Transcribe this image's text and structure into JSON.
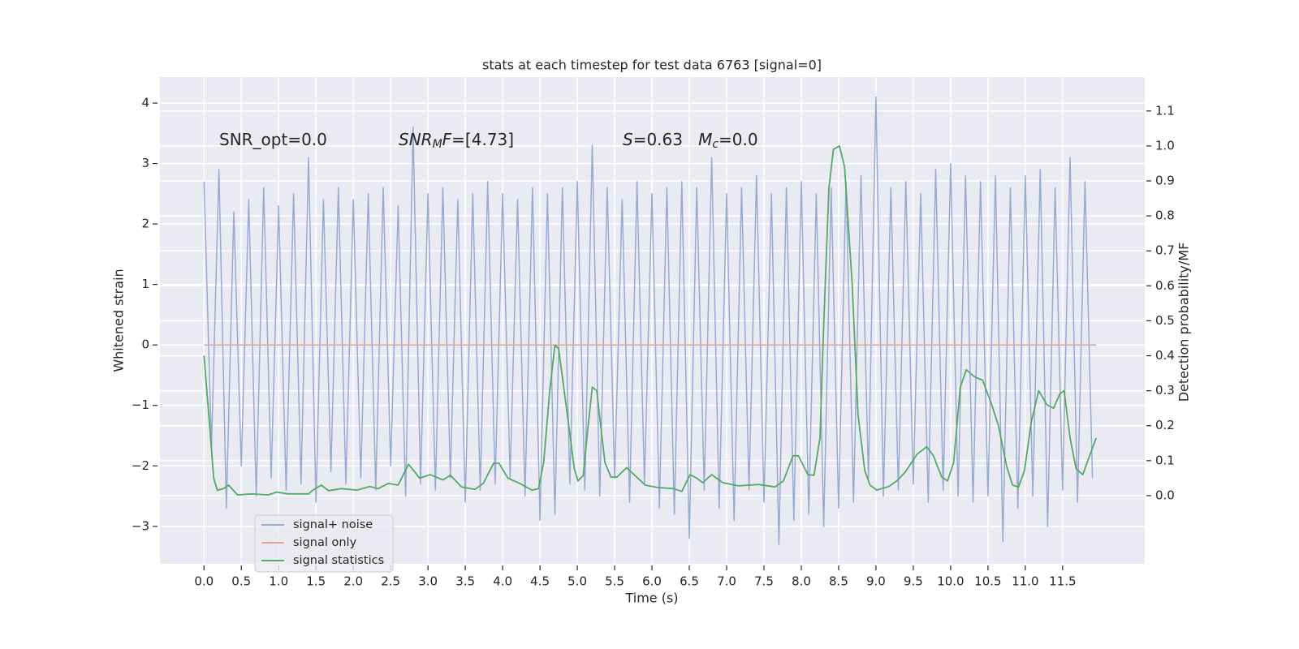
{
  "chart_data": {
    "type": "line",
    "title": "stats at each timestep for test data 6763 [signal=0]",
    "xlabel": "Time (s)",
    "ylabel": "Whitened strain",
    "y2label": "Detection probability/MF",
    "xlim": [
      -0.59,
      12.6
    ],
    "ylim": [
      -3.62,
      4.43
    ],
    "y2lim": [
      -0.195,
      1.197
    ],
    "xticks": [
      {
        "value": 0,
        "label": "0.0"
      },
      0.5,
      {
        "value": 1,
        "label": "1.0"
      },
      1.5,
      {
        "value": 2,
        "label": "2.0"
      },
      2.5,
      {
        "value": 3,
        "label": "3.0"
      },
      3.5,
      {
        "value": 4,
        "label": "4.0"
      },
      4.5,
      {
        "value": 5,
        "label": "5.0"
      },
      5.5,
      {
        "value": 6,
        "label": "6.0"
      },
      6.5,
      {
        "value": 7,
        "label": "7.0"
      },
      7.5,
      {
        "value": 8,
        "label": "8.0"
      },
      8.5,
      {
        "value": 9,
        "label": "9.0"
      },
      9.5,
      {
        "value": 10,
        "label": "10.0"
      },
      10.5,
      {
        "value": 11,
        "label": "11.0"
      },
      11.5
    ],
    "yticks": [
      {
        "value": -3,
        "label": "−3"
      },
      {
        "value": -2,
        "label": "−2"
      },
      {
        "value": -1,
        "label": "−1"
      },
      0,
      1,
      2,
      3,
      4
    ],
    "y2ticks": [
      {
        "value": 0,
        "label": "0.0"
      },
      0.1,
      0.2,
      0.3,
      0.4,
      0.5,
      0.6,
      0.7,
      0.8,
      0.9,
      {
        "value": 1,
        "label": "1.0"
      },
      1.1
    ],
    "grid": true,
    "legend": "lower left",
    "annotations": [
      [
        {
          "text": "SNR_opt=0.0",
          "style": "n"
        }
      ],
      [
        {
          "text": "SNR",
          "style": "i"
        },
        {
          "text": "M",
          "style": "sub"
        },
        {
          "text": "F",
          "style": "i"
        },
        {
          "text": "=[4.73]",
          "style": "n"
        }
      ],
      [
        {
          "text": "S",
          "style": "i"
        },
        {
          "text": "=0.63   ",
          "style": "n"
        },
        {
          "text": "M",
          "style": "i"
        },
        {
          "text": "c",
          "style": "sub"
        },
        {
          "text": "=0.0",
          "style": "n"
        }
      ]
    ],
    "series": [
      {
        "name": "signal+ noise",
        "color": "#98aad0",
        "axis": "y",
        "x": [
          0,
          0.1,
          0.2,
          0.3,
          0.4,
          0.5,
          0.6,
          0.7,
          0.8,
          0.9,
          1,
          1.1,
          1.2,
          1.3,
          1.4,
          1.5,
          1.6,
          1.7,
          1.8,
          1.9,
          2,
          2.1,
          2.2,
          2.3,
          2.4,
          2.5,
          2.6,
          2.7,
          2.8,
          2.9,
          3,
          3.1,
          3.2,
          3.3,
          3.4,
          3.5,
          3.6,
          3.7,
          3.8,
          3.9,
          4,
          4.1,
          4.2,
          4.3,
          4.4,
          4.5,
          4.6,
          4.7,
          4.8,
          4.9,
          5,
          5.1,
          5.2,
          5.3,
          5.4,
          5.5,
          5.6,
          5.7,
          5.8,
          5.9,
          6,
          6.1,
          6.2,
          6.3,
          6.4,
          6.5,
          6.6,
          6.7,
          6.8,
          6.9,
          7,
          7.1,
          7.2,
          7.3,
          7.4,
          7.5,
          7.6,
          7.7,
          7.8,
          7.9,
          8,
          8.1,
          8.2,
          8.3,
          8.4,
          8.5,
          8.6,
          8.7,
          8.8,
          8.9,
          9,
          9.1,
          9.2,
          9.3,
          9.4,
          9.5,
          9.6,
          9.7,
          9.8,
          9.9,
          10,
          10.1,
          10.2,
          10.3,
          10.4,
          10.5,
          10.6,
          10.7,
          10.8,
          10.9,
          11,
          11.1,
          11.2,
          11.3,
          11.4,
          11.5,
          11.6,
          11.7,
          11.8,
          11.9
        ],
        "values": [
          2.7,
          -1.7,
          2.9,
          -2.7,
          2.2,
          -2.0,
          2.4,
          -2.5,
          2.6,
          -2.2,
          2.3,
          -2.4,
          2.5,
          -2.3,
          3.1,
          -2.6,
          2.4,
          -2.1,
          2.6,
          -2.3,
          2.4,
          -2.2,
          2.5,
          -2.4,
          2.6,
          -2.0,
          2.3,
          -2.5,
          3.6,
          -2.3,
          2.5,
          -2.4,
          2.6,
          -2.2,
          2.4,
          -2.6,
          2.5,
          -2.4,
          2.7,
          -2.3,
          2.5,
          -2.2,
          2.4,
          -2.5,
          2.6,
          -2.9,
          2.5,
          -2.8,
          2.6,
          -2.3,
          2.7,
          -2.4,
          3.3,
          -2.5,
          2.6,
          -2.2,
          2.4,
          -2.6,
          2.7,
          -2.3,
          2.5,
          -2.7,
          2.6,
          -2.8,
          2.7,
          -3.2,
          2.6,
          -2.4,
          3.1,
          -2.7,
          2.5,
          -2.9,
          2.6,
          -2.4,
          2.8,
          -2.6,
          2.5,
          -3.3,
          2.6,
          -2.9,
          2.7,
          -2.8,
          2.5,
          -3.0,
          2.6,
          -2.7,
          2.7,
          -2.6,
          2.8,
          -2.2,
          4.1,
          -2.5,
          2.6,
          -2.4,
          2.7,
          -2.3,
          2.5,
          -2.6,
          2.9,
          -2.4,
          3.0,
          -2.5,
          2.8,
          -2.6,
          2.7,
          -2.5,
          2.8,
          -3.25,
          2.6,
          -2.7,
          2.8,
          -2.5,
          2.9,
          -3.0,
          2.6,
          -2.4,
          3.1,
          -2.6,
          2.7,
          -2.2
        ]
      },
      {
        "name": "signal only",
        "color": "#e5a58c",
        "axis": "y",
        "x": [
          0,
          11.95
        ],
        "values": [
          0,
          0
        ]
      },
      {
        "name": "signal statistics",
        "color": "#55a868",
        "axis": "y2",
        "x": [
          0,
          0.08,
          0.13,
          0.18,
          0.26,
          0.33,
          0.45,
          0.64,
          0.86,
          0.97,
          1.13,
          1.4,
          1.46,
          1.57,
          1.67,
          1.84,
          2.05,
          2.22,
          2.33,
          2.47,
          2.6,
          2.74,
          2.89,
          3.03,
          3.2,
          3.3,
          3.45,
          3.63,
          3.74,
          3.88,
          3.95,
          4.07,
          4.23,
          4.39,
          4.48,
          4.55,
          4.63,
          4.7,
          4.75,
          4.88,
          4.96,
          5.01,
          5.08,
          5.14,
          5.2,
          5.26,
          5.37,
          5.45,
          5.53,
          5.66,
          5.77,
          5.91,
          6.08,
          6.29,
          6.4,
          6.51,
          6.6,
          6.68,
          6.8,
          6.95,
          7.16,
          7.43,
          7.65,
          7.76,
          7.89,
          7.96,
          8.09,
          8.17,
          8.25,
          8.3,
          8.37,
          8.43,
          8.51,
          8.58,
          8.68,
          8.76,
          8.85,
          8.92,
          9.01,
          9.17,
          9.28,
          9.39,
          9.55,
          9.68,
          9.77,
          9.88,
          9.96,
          10.04,
          10.13,
          10.21,
          10.32,
          10.43,
          10.55,
          10.64,
          10.75,
          10.83,
          10.91,
          10.99,
          11.08,
          11.18,
          11.29,
          11.38,
          11.46,
          11.52,
          11.6,
          11.68,
          11.77,
          11.85,
          11.95
        ],
        "values": [
          0.4,
          0.19,
          0.05,
          0.015,
          0.02,
          0.03,
          0.002,
          0.005,
          0.002,
          0.01,
          0.005,
          0.005,
          0.016,
          0.03,
          0.014,
          0.02,
          0.016,
          0.026,
          0.02,
          0.035,
          0.03,
          0.09,
          0.05,
          0.06,
          0.045,
          0.058,
          0.025,
          0.018,
          0.035,
          0.093,
          0.093,
          0.05,
          0.035,
          0.016,
          0.02,
          0.095,
          0.3,
          0.43,
          0.42,
          0.21,
          0.077,
          0.042,
          0.058,
          0.19,
          0.31,
          0.3,
          0.095,
          0.053,
          0.053,
          0.08,
          0.058,
          0.03,
          0.023,
          0.02,
          0.012,
          0.06,
          0.05,
          0.037,
          0.06,
          0.037,
          0.028,
          0.032,
          0.025,
          0.042,
          0.114,
          0.114,
          0.06,
          0.058,
          0.165,
          0.49,
          0.88,
          0.99,
          1.0,
          0.94,
          0.61,
          0.23,
          0.072,
          0.03,
          0.016,
          0.026,
          0.042,
          0.067,
          0.118,
          0.14,
          0.114,
          0.053,
          0.042,
          0.095,
          0.31,
          0.36,
          0.34,
          0.33,
          0.26,
          0.2,
          0.084,
          0.03,
          0.025,
          0.072,
          0.21,
          0.3,
          0.26,
          0.25,
          0.29,
          0.3,
          0.165,
          0.077,
          0.06,
          0.107,
          0.165
        ]
      }
    ]
  }
}
